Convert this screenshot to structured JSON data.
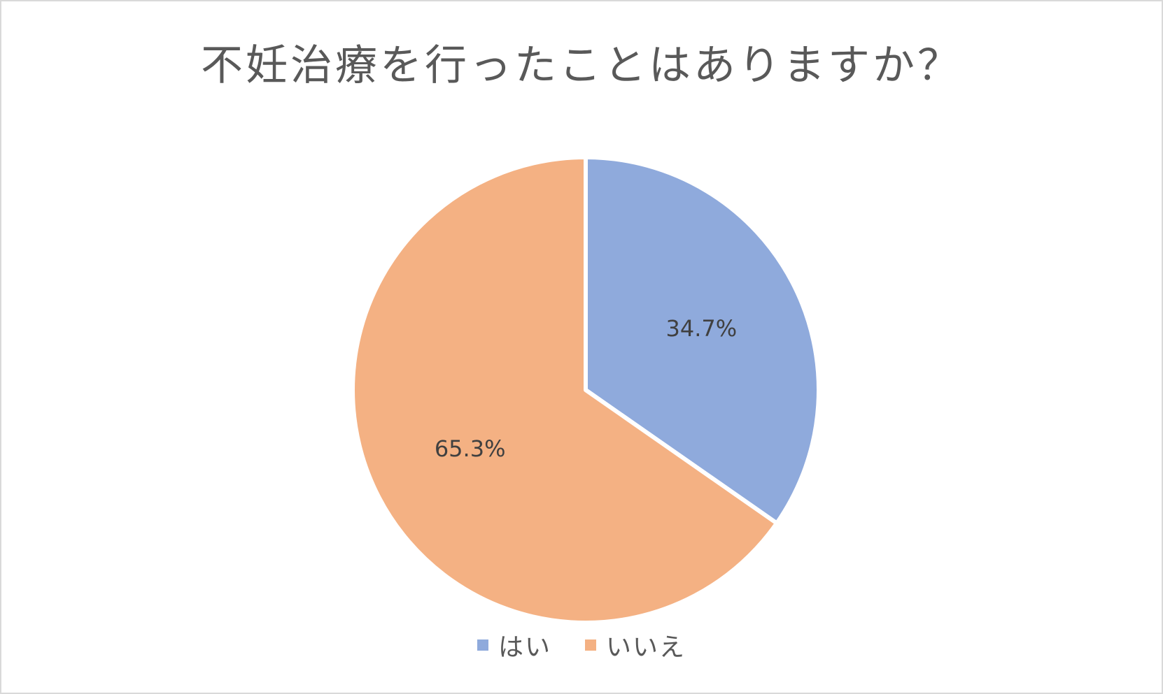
{
  "chart_data": {
    "type": "pie",
    "title": "不妊治療を行ったことはありますか？",
    "slices": [
      {
        "label": "はい",
        "value": 34.7,
        "display": "34.7%",
        "color": "#8faadc"
      },
      {
        "label": "いいえ",
        "value": 65.3,
        "display": "65.3%",
        "color": "#f4b183"
      }
    ],
    "start_angle": "12 o'clock",
    "direction": "clockwise",
    "data_labels": "inside",
    "legend": "bottom"
  }
}
